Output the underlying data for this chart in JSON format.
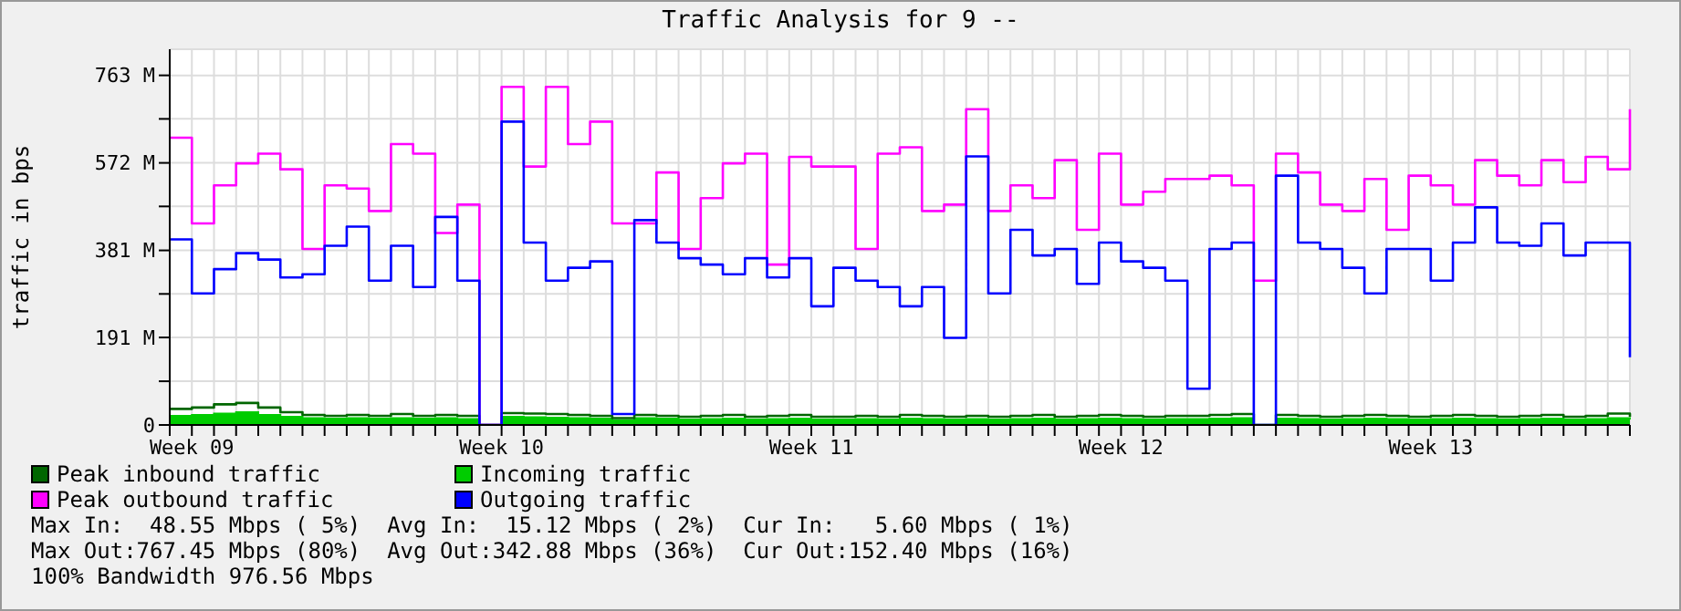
{
  "chart_data": {
    "type": "step",
    "title": "Traffic Analysis for 9 --",
    "ylabel": "traffic in bps",
    "categories": [
      null,
      "Week 09",
      null,
      null,
      null,
      null,
      null,
      null,
      null,
      null,
      null,
      null,
      null,
      null,
      null,
      "Week 10",
      null,
      null,
      null,
      null,
      null,
      null,
      null,
      null,
      null,
      null,
      null,
      null,
      null,
      "Week 11",
      null,
      null,
      null,
      null,
      null,
      null,
      null,
      null,
      null,
      null,
      null,
      null,
      null,
      "Week 12",
      null,
      null,
      null,
      null,
      null,
      null,
      null,
      null,
      null,
      null,
      null,
      null,
      null,
      "Week 13",
      null,
      null,
      null,
      null,
      null,
      null,
      null,
      null,
      null
    ],
    "series": [
      {
        "name": "Peak inbound traffic",
        "color": "#006600",
        "values": [
          35,
          38,
          45,
          48,
          38,
          28,
          22,
          20,
          22,
          20,
          24,
          20,
          22,
          20,
          0,
          26,
          25,
          24,
          22,
          20,
          15,
          22,
          20,
          18,
          20,
          22,
          18,
          20,
          22,
          18,
          18,
          20,
          18,
          22,
          20,
          18,
          20,
          18,
          20,
          22,
          18,
          20,
          22,
          20,
          18,
          20,
          20,
          22,
          24,
          0,
          22,
          20,
          18,
          20,
          22,
          20,
          18,
          20,
          22,
          20,
          18,
          20,
          22,
          18,
          20,
          25,
          18
        ]
      },
      {
        "name": "Incoming traffic",
        "type": "area",
        "color": "#00cc00",
        "values": [
          20,
          22,
          25,
          28,
          22,
          18,
          15,
          14,
          15,
          14,
          15,
          14,
          15,
          13,
          0,
          18,
          17,
          16,
          15,
          14,
          10,
          15,
          14,
          12,
          13,
          14,
          12,
          13,
          14,
          12,
          12,
          13,
          12,
          14,
          13,
          12,
          13,
          12,
          13,
          14,
          12,
          13,
          14,
          13,
          12,
          13,
          13,
          14,
          15,
          0,
          14,
          13,
          12,
          13,
          14,
          13,
          12,
          13,
          14,
          13,
          12,
          13,
          14,
          12,
          13,
          15,
          12
        ]
      },
      {
        "name": "Peak outbound traffic",
        "color": "#ff00ff",
        "values": [
          627,
          440,
          523,
          571,
          592,
          558,
          384,
          523,
          516,
          467,
          613,
          592,
          419,
          481,
          0,
          738,
          564,
          738,
          613,
          662,
          440,
          440,
          551,
          384,
          495,
          571,
          592,
          350,
          585,
          564,
          564,
          384,
          592,
          606,
          467,
          481,
          689,
          467,
          523,
          495,
          578,
          426,
          592,
          481,
          509,
          537,
          537,
          544,
          523,
          315,
          592,
          551,
          481,
          467,
          537,
          426,
          544,
          523,
          481,
          578,
          544,
          523,
          578,
          530,
          585,
          558,
          689
        ]
      },
      {
        "name": "Outgoing traffic",
        "color": "#0000ff",
        "values": [
          405,
          287,
          340,
          375,
          361,
          322,
          329,
          391,
          433,
          315,
          391,
          301,
          454,
          315,
          0,
          662,
          398,
          315,
          343,
          357,
          24,
          447,
          398,
          364,
          350,
          329,
          364,
          322,
          364,
          259,
          343,
          315,
          301,
          259,
          301,
          190,
          586,
          287,
          426,
          370,
          384,
          308,
          398,
          357,
          343,
          315,
          79,
          384,
          398,
          0,
          544,
          398,
          384,
          343,
          287,
          384,
          384,
          315,
          398,
          475,
          398,
          391,
          440,
          370,
          398,
          398,
          148
        ]
      }
    ],
    "ylim": [
      0,
      820
    ],
    "yticks": [
      0,
      {
        "value": 95.4,
        "label": null
      },
      {
        "value": 191,
        "label": "191 M"
      },
      {
        "value": 286,
        "label": null
      },
      {
        "value": 381,
        "label": "381 M"
      },
      {
        "value": 477,
        "label": null
      },
      {
        "value": 572,
        "label": "572 M"
      },
      {
        "value": 668,
        "label": null
      },
      {
        "value": 763,
        "label": "763 M"
      }
    ],
    "grid": true,
    "legend": "bottom",
    "annotations": [
      "Max In:  48.55 Mbps ( 5%)  Avg In:  15.12 Mbps ( 2%)  Cur In:   5.60 Mbps ( 1%)",
      "Max Out:767.45 Mbps (80%)  Avg Out:342.88 Mbps (36%)  Cur Out:152.40 Mbps (16%)",
      "100% Bandwidth 976.56 Mbps"
    ]
  }
}
